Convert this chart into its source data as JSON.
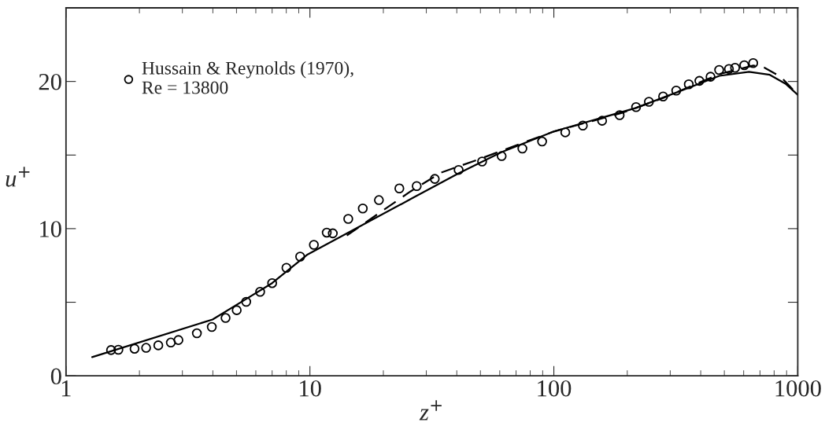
{
  "chart_data": {
    "type": "line",
    "xlabel": "z$^{+}$",
    "ylabel": "u$^{+}$",
    "log": "x",
    "xlim": [
      1,
      1000
    ],
    "ylim": [
      0,
      25
    ],
    "xticks": [
      1,
      10,
      100,
      1000
    ],
    "yticks": [
      0,
      {
        "value": 5,
        "label": null
      },
      10,
      {
        "value": 15,
        "label": null
      },
      20
    ],
    "grid": false,
    "legend": "top left",
    "series": [
      {
        "name": "Hussain & Reynolds (1970),\nRe = 13800",
        "type": "scatter",
        "marker": "circle",
        "color": "#000000",
        "x": [
          1.53,
          1.64,
          1.91,
          2.13,
          2.39,
          2.69,
          2.89,
          3.44,
          3.96,
          4.51,
          5.01,
          5.48,
          6.25,
          7.0,
          8.01,
          9.12,
          10.38,
          11.72,
          12.41,
          14.36,
          16.47,
          19.18,
          23.26,
          27.4,
          32.5,
          40.7,
          50.8,
          61.1,
          74.3,
          89.5,
          111.4,
          131.5,
          157.7,
          186.1,
          217.3,
          245.3,
          280.5,
          317.5,
          357.4,
          395.1,
          438.9,
          476.1,
          522.2,
          553.4,
          603.5,
          656.5
        ],
        "values": [
          1.75,
          1.77,
          1.84,
          1.9,
          2.07,
          2.26,
          2.43,
          2.89,
          3.32,
          3.93,
          4.46,
          5.03,
          5.71,
          6.3,
          7.34,
          8.1,
          8.9,
          9.73,
          9.68,
          10.66,
          11.37,
          11.94,
          12.73,
          12.89,
          13.38,
          13.99,
          14.56,
          14.93,
          15.44,
          15.92,
          16.54,
          17.0,
          17.33,
          17.71,
          18.26,
          18.62,
          18.98,
          19.38,
          19.81,
          20.04,
          20.32,
          20.78,
          20.85,
          20.93,
          21.1,
          21.25
        ]
      },
      {
        "line_style": "solid",
        "color": "#000000",
        "x": [
          1.28,
          3.99,
          5.48,
          7.0,
          9.79,
          26.5,
          40.7,
          61.1,
          100,
          217,
          369,
          477,
          631,
          768,
          890,
          1000
        ],
        "values": [
          1.27,
          3.83,
          5.22,
          6.3,
          8.25,
          12.1,
          13.76,
          15.2,
          16.6,
          18.2,
          19.66,
          20.38,
          20.66,
          20.45,
          19.85,
          19.09
        ]
      },
      {
        "line_style": "dashed",
        "color": "#000000",
        "x": [
          14.17,
          18.44,
          25.8,
          34.4,
          49.8,
          75.9,
          100,
          190,
          283,
          478,
          657,
          729,
          852,
          1000
        ],
        "values": [
          9.53,
          10.85,
          12.52,
          13.8,
          14.74,
          15.88,
          16.6,
          17.86,
          18.9,
          20.51,
          21.08,
          20.94,
          20.32,
          19.09
        ]
      }
    ]
  }
}
